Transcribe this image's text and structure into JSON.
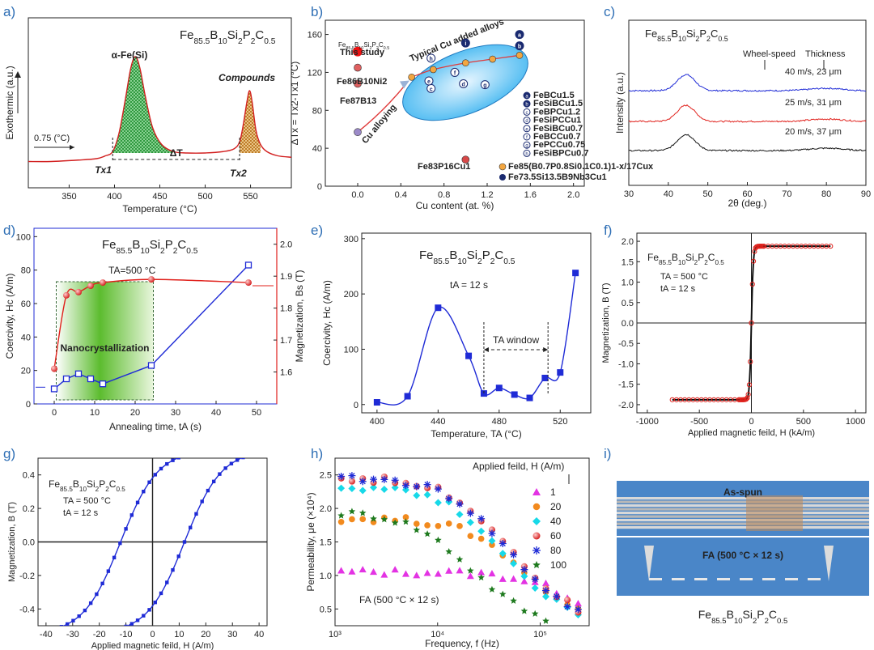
{
  "chart_data": [
    {
      "id": "a",
      "type": "line",
      "panel_label": "a)",
      "title": "Fe85.5B10Si2P2C0.5",
      "xlabel": "Temperature (°C)",
      "ylabel": "Exothermic (a.u.)",
      "xlim": [
        305,
        595
      ],
      "xticks": [
        350,
        400,
        450,
        500,
        550
      ],
      "x": [
        305,
        330,
        360,
        380,
        390,
        398,
        405,
        412,
        418,
        423,
        428,
        434,
        442,
        452,
        465,
        480,
        500,
        520,
        532,
        538,
        542,
        546,
        549,
        552,
        556,
        561,
        568,
        580,
        595
      ],
      "values": [
        0.14,
        0.14,
        0.15,
        0.16,
        0.18,
        0.21,
        0.34,
        0.58,
        0.8,
        0.88,
        0.8,
        0.6,
        0.38,
        0.26,
        0.21,
        0.2,
        0.2,
        0.21,
        0.23,
        0.28,
        0.4,
        0.56,
        0.64,
        0.55,
        0.36,
        0.26,
        0.21,
        0.18,
        0.17
      ],
      "peak_labels": [
        "α-Fe(Si)",
        "Compounds"
      ],
      "scale_label": "0.75 (°C)",
      "onset_labels": [
        "Tx1",
        "Tx2"
      ],
      "delta_label": "ΔT",
      "tx1": 398,
      "tx2": 538
    },
    {
      "id": "b",
      "type": "scatter",
      "panel_label": "b)",
      "xlabel": "Cu content (at. %)",
      "ylabel": "ΔTx = Tx2-Tx1 (°C)",
      "xlim": [
        -0.3,
        2.1
      ],
      "ylim": [
        0,
        175
      ],
      "xticks": [
        0.0,
        0.4,
        0.8,
        1.2,
        1.6,
        2.0
      ],
      "yticks": [
        0,
        40,
        80,
        120,
        160
      ],
      "ellipse_label": "Typical Cu added alloys",
      "arrow_label": "Cu alloying",
      "highlight": {
        "label": "Fe85.5B10Si2P2C0.5",
        "sublabel": "This study",
        "x": 0.0,
        "y": 142
      },
      "other_points": [
        {
          "label": "Fe86B10Ni2",
          "x": 0.0,
          "y": 125
        },
        {
          "label": "Fe87B13",
          "x": 0.0,
          "y": 108
        },
        {
          "label": "Fe83P16Cu1",
          "x": 1.0,
          "y": 28
        },
        {
          "label": "",
          "x": 0.0,
          "y": 57
        }
      ],
      "curve_x": [
        0.5,
        0.7,
        1.0,
        1.25,
        1.5
      ],
      "curve_y": [
        115,
        123,
        130,
        134,
        138
      ],
      "lettered_points": [
        {
          "letter": "a",
          "x": 1.5,
          "y": 160
        },
        {
          "letter": "b",
          "x": 1.5,
          "y": 148
        },
        {
          "letter": "c",
          "x": 0.68,
          "y": 103
        },
        {
          "letter": "d",
          "x": 0.98,
          "y": 108
        },
        {
          "letter": "e",
          "x": 0.66,
          "y": 111
        },
        {
          "letter": "f",
          "x": 0.9,
          "y": 120
        },
        {
          "letter": "g",
          "x": 1.18,
          "y": 107
        },
        {
          "letter": "h",
          "x": 0.68,
          "y": 135
        },
        {
          "letter": "i",
          "x": 1.0,
          "y": 151
        }
      ],
      "legend": [
        {
          "letter": "a",
          "label": "FeBCu1.5"
        },
        {
          "letter": "b",
          "label": "FeSiBCu1.5"
        },
        {
          "letter": "c",
          "label": "FeBPCu1.2"
        },
        {
          "letter": "d",
          "label": "FeSiPCCu1"
        },
        {
          "letter": "e",
          "label": "FeSiBCu0.7"
        },
        {
          "letter": "f",
          "label": "FeBCCu0.7"
        },
        {
          "letter": "g",
          "label": "FePCCu0.75"
        },
        {
          "letter": "h",
          "label": "FeSiBPCu0.7"
        }
      ],
      "extra_legend": [
        {
          "label": "Fe85(B0.7P0.8Si0.1C0.1)1-x/17Cux"
        },
        {
          "letter": "i",
          "label": "Fe73.5Si13.5B9Nb3Cu1"
        }
      ]
    },
    {
      "id": "c",
      "type": "line",
      "panel_label": "c)",
      "title": "Fe85.5B10Si2P2C0.5",
      "xlabel": "2θ (deg.)",
      "ylabel": "Intensity (a.u.)",
      "xlim": [
        30,
        90
      ],
      "xticks": [
        30,
        40,
        50,
        60,
        70,
        80,
        90
      ],
      "column_labels": [
        "Wheel-speed",
        "Thickness"
      ],
      "series": [
        {
          "name": "40 m/s, 23 μm",
          "color": "#1f2bd6",
          "offset": 2.0
        },
        {
          "name": "25 m/s, 31 μm",
          "color": "#e0201b",
          "offset": 1.0
        },
        {
          "name": "20 m/s, 37 μm",
          "color": "#111111",
          "offset": 0.0
        }
      ],
      "peak_center": 44.5,
      "peak_width": 3.2,
      "peak_height": 0.55
    },
    {
      "id": "d",
      "type": "line",
      "panel_label": "d)",
      "title": "Fe85.5B10Si2P2C0.5",
      "subtitle": "TA=500 °C",
      "xlabel": "Annealing time, tA (s)",
      "ylabel": "Coercivity, Hc (A/m)",
      "y2label": "Magnetization, Bs (T)",
      "xlim": [
        -5,
        55
      ],
      "ylim": [
        0,
        105
      ],
      "y2lim": [
        1.5,
        2.05
      ],
      "xticks": [
        0,
        10,
        20,
        30,
        40,
        50
      ],
      "yticks": [
        0,
        20,
        40,
        60,
        80,
        100
      ],
      "y2ticks": [
        1.6,
        1.7,
        1.8,
        1.9,
        2.0
      ],
      "region_label": "Nanocrystallization",
      "region": [
        0.5,
        24.5
      ],
      "series": [
        {
          "name": "Hc",
          "axis": "left",
          "color": "#1f2bd6",
          "x": [
            0,
            3,
            6,
            9,
            12,
            24,
            48
          ],
          "values": [
            9,
            15,
            18,
            15,
            12,
            23,
            83
          ]
        },
        {
          "name": "Bs",
          "axis": "right",
          "color": "#e0201b",
          "x": [
            0,
            3,
            6,
            9,
            12,
            24,
            48
          ],
          "values": [
            1.61,
            1.84,
            1.85,
            1.87,
            1.88,
            1.89,
            1.88
          ]
        }
      ]
    },
    {
      "id": "e",
      "type": "line",
      "panel_label": "e)",
      "title": "Fe85.5B10Si2P2C0.5",
      "subtitle": "tA = 12 s",
      "xlabel": "Temperature, TA (°C)",
      "ylabel": "Coercivity, Hc (A/m)",
      "xlim": [
        390,
        540
      ],
      "ylim": [
        -15,
        310
      ],
      "xticks": [
        400,
        440,
        480,
        520
      ],
      "yticks": [
        0,
        100,
        200,
        300
      ],
      "window_label": "TA window",
      "window": [
        470,
        512
      ],
      "x": [
        400,
        420,
        440,
        460,
        470,
        480,
        490,
        500,
        510,
        520,
        530
      ],
      "values": [
        4,
        15,
        175,
        88,
        20,
        30,
        18,
        12,
        48,
        58,
        238
      ]
    },
    {
      "id": "f",
      "type": "line",
      "panel_label": "f)",
      "title": "Fe85.5B10Si2P2C0.5",
      "subtitle": "TA = 500 °C",
      "subtitle2": "tA = 12 s",
      "xlabel": "Applied magnetic feild, H (kA/m)",
      "ylabel": "Magnetization, B (T)",
      "xlim": [
        -1100,
        1100
      ],
      "ylim": [
        -2.2,
        2.2
      ],
      "xticks": [
        -1000,
        -500,
        0,
        500,
        1000
      ],
      "yticks": [
        -2.0,
        -1.5,
        -1.0,
        -0.5,
        0.0,
        0.5,
        1.0,
        1.5,
        2.0
      ],
      "hmax": 760,
      "bsat": 1.88,
      "h0": 18
    },
    {
      "id": "g",
      "type": "line",
      "panel_label": "g)",
      "title": "Fe85.5B10Si2P2C0.5",
      "subtitle": "TA = 500 °C",
      "subtitle2": "tA = 12 s",
      "xlabel": "Applied magnetic feild, H (A/m)",
      "ylabel": "Magnetization, B (T)",
      "xlim": [
        -43,
        43
      ],
      "ylim": [
        -0.5,
        0.5
      ],
      "xticks": [
        -40,
        -30,
        -20,
        -10,
        0,
        10,
        20,
        30,
        40
      ],
      "yticks": [
        -0.4,
        -0.2,
        0.0,
        0.2,
        0.4
      ],
      "hc": 12,
      "bmax": 0.55,
      "h0": 14
    },
    {
      "id": "h",
      "type": "scatter",
      "panel_label": "h)",
      "xlabel": "Frequency, f (Hz)",
      "ylabel": "Permeability, μe (×10⁴)",
      "xscale": "log",
      "xlim": [
        1000,
        300000
      ],
      "ylim": [
        0.25,
        2.75
      ],
      "xtick_labels": [
        "10³",
        "10⁴",
        "10⁵"
      ],
      "xtick_values": [
        1000,
        10000,
        100000
      ],
      "yticks": [
        0.5,
        1.0,
        1.5,
        2.0,
        2.5
      ],
      "legend_title": "Applied feild, H (A/m)",
      "annotation": "FA (500 °C × 12 s)",
      "series": [
        {
          "name": "1",
          "marker": "triangle",
          "color": "#e333e3",
          "plateau": 1.05,
          "fc": 160000
        },
        {
          "name": "20",
          "marker": "circle",
          "color": "#f28a1e",
          "plateau": 1.85,
          "fc": 45000
        },
        {
          "name": "40",
          "marker": "diamond",
          "color": "#17d9e8",
          "plateau": 2.33,
          "fc": 28000
        },
        {
          "name": "60",
          "marker": "ball",
          "color": "#e0201b",
          "plateau": 2.45,
          "fc": 32000
        },
        {
          "name": "80",
          "marker": "plus",
          "color": "#1f2bd6",
          "plateau": 2.45,
          "fc": 30000
        },
        {
          "name": "100",
          "marker": "star",
          "color": "#1e7a1e",
          "plateau": 1.95,
          "fc": 13000
        }
      ]
    },
    {
      "id": "i",
      "type": "image",
      "panel_label": "i)",
      "labels": [
        "As-spun",
        "FA (500 °C × 12 s)"
      ],
      "caption": "Fe85.5B10Si2P2C0.5"
    }
  ]
}
